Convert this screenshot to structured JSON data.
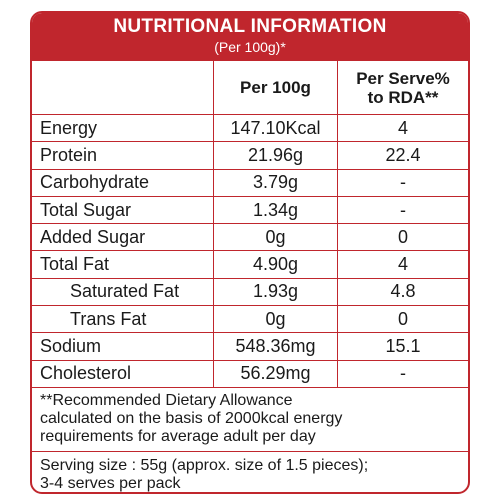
{
  "header": {
    "title": "NUTRITIONAL INFORMATION",
    "subtitle": "(Per 100g)*"
  },
  "columns": {
    "per100": "Per 100g",
    "serve_line1": "Per Serve%",
    "serve_line2": "to RDA**"
  },
  "rows": [
    {
      "name": "Energy",
      "per100": "147.10Kcal",
      "serve": "4"
    },
    {
      "name": "Protein",
      "per100": "21.96g",
      "serve": "22.4"
    },
    {
      "name": "Carbohydrate",
      "per100": "3.79g",
      "serve": "-"
    },
    {
      "name": "Total Sugar",
      "per100": "1.34g",
      "serve": "-"
    },
    {
      "name": "Added Sugar",
      "per100": "0g",
      "serve": "0"
    },
    {
      "name": "Total Fat",
      "per100": "4.90g",
      "serve": "4"
    },
    {
      "name": "Saturated Fat",
      "per100": "1.93g",
      "serve": "4.8"
    },
    {
      "name": "Trans Fat",
      "per100": "0g",
      "serve": "0"
    },
    {
      "name": "Sodium",
      "per100": "548.36mg",
      "serve": "15.1"
    },
    {
      "name": "Cholesterol",
      "per100": "56.29mg",
      "serve": "-"
    }
  ],
  "footnote": {
    "line1": "**Recommended Dietary Allowance",
    "line2": "calculated on the basis of 2000kcal energy",
    "line3": "requirements for average adult per day"
  },
  "serving": {
    "line1": "Serving size : 55g (approx. size of 1.5 pieces);",
    "line2": "3-4 serves per pack"
  },
  "colors": {
    "accent": "#c0262d"
  }
}
